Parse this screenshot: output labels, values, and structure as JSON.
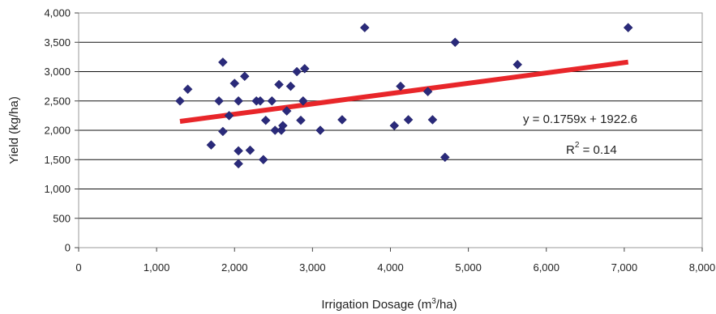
{
  "chart_data": {
    "type": "scatter",
    "xlabel": "Irrigation Dosage (m",
    "xlabel_sup": "3",
    "xlabel_suffix": "/ha)",
    "ylabel": "Yield (kg/ha)",
    "xlim": [
      0,
      8000
    ],
    "ylim": [
      0,
      4000
    ],
    "x_ticks": [
      0,
      1000,
      2000,
      3000,
      4000,
      5000,
      6000,
      7000,
      8000
    ],
    "x_tick_labels": [
      "0",
      "1,000",
      "2,000",
      "3,000",
      "4,000",
      "5,000",
      "6,000",
      "7,000",
      "8,000"
    ],
    "y_ticks": [
      0,
      500,
      1000,
      1500,
      2000,
      2500,
      3000,
      3500,
      4000
    ],
    "y_tick_labels": [
      "0",
      "500",
      "1,000",
      "1,500",
      "2,000",
      "2,500",
      "3,000",
      "3,500",
      "4,000"
    ],
    "grid": "horizontal",
    "marker_color": "#2a2a7a",
    "trend_color": "#e8262a",
    "points": [
      {
        "x": 1300,
        "y": 2500
      },
      {
        "x": 1400,
        "y": 2700
      },
      {
        "x": 1700,
        "y": 1750
      },
      {
        "x": 1800,
        "y": 2500
      },
      {
        "x": 1850,
        "y": 3160
      },
      {
        "x": 1850,
        "y": 1980
      },
      {
        "x": 1930,
        "y": 2250
      },
      {
        "x": 2000,
        "y": 2800
      },
      {
        "x": 2050,
        "y": 2500
      },
      {
        "x": 2050,
        "y": 1650
      },
      {
        "x": 2050,
        "y": 1430
      },
      {
        "x": 2130,
        "y": 2920
      },
      {
        "x": 2200,
        "y": 1660
      },
      {
        "x": 2280,
        "y": 2500
      },
      {
        "x": 2330,
        "y": 2500
      },
      {
        "x": 2370,
        "y": 1500
      },
      {
        "x": 2400,
        "y": 2170
      },
      {
        "x": 2480,
        "y": 2500
      },
      {
        "x": 2520,
        "y": 2000
      },
      {
        "x": 2570,
        "y": 2780
      },
      {
        "x": 2600,
        "y": 2000
      },
      {
        "x": 2620,
        "y": 2080
      },
      {
        "x": 2670,
        "y": 2330
      },
      {
        "x": 2720,
        "y": 2750
      },
      {
        "x": 2800,
        "y": 3000
      },
      {
        "x": 2850,
        "y": 2170
      },
      {
        "x": 2880,
        "y": 2500
      },
      {
        "x": 2900,
        "y": 3050
      },
      {
        "x": 3100,
        "y": 2000
      },
      {
        "x": 3380,
        "y": 2180
      },
      {
        "x": 3670,
        "y": 3750
      },
      {
        "x": 4050,
        "y": 2080
      },
      {
        "x": 4130,
        "y": 2750
      },
      {
        "x": 4230,
        "y": 2180
      },
      {
        "x": 4480,
        "y": 2660
      },
      {
        "x": 4540,
        "y": 2180
      },
      {
        "x": 4700,
        "y": 1540
      },
      {
        "x": 4830,
        "y": 3500
      },
      {
        "x": 5630,
        "y": 3120
      },
      {
        "x": 7050,
        "y": 3750
      }
    ],
    "trendline": {
      "slope": 0.1759,
      "intercept": 1922.6,
      "x_start": 1300,
      "x_end": 7050
    },
    "annotations": {
      "equation": "y = 0.1759x + 1922.6",
      "r2_prefix": "R",
      "r2_sup": "2",
      "r2_suffix": " = 0.14"
    }
  }
}
